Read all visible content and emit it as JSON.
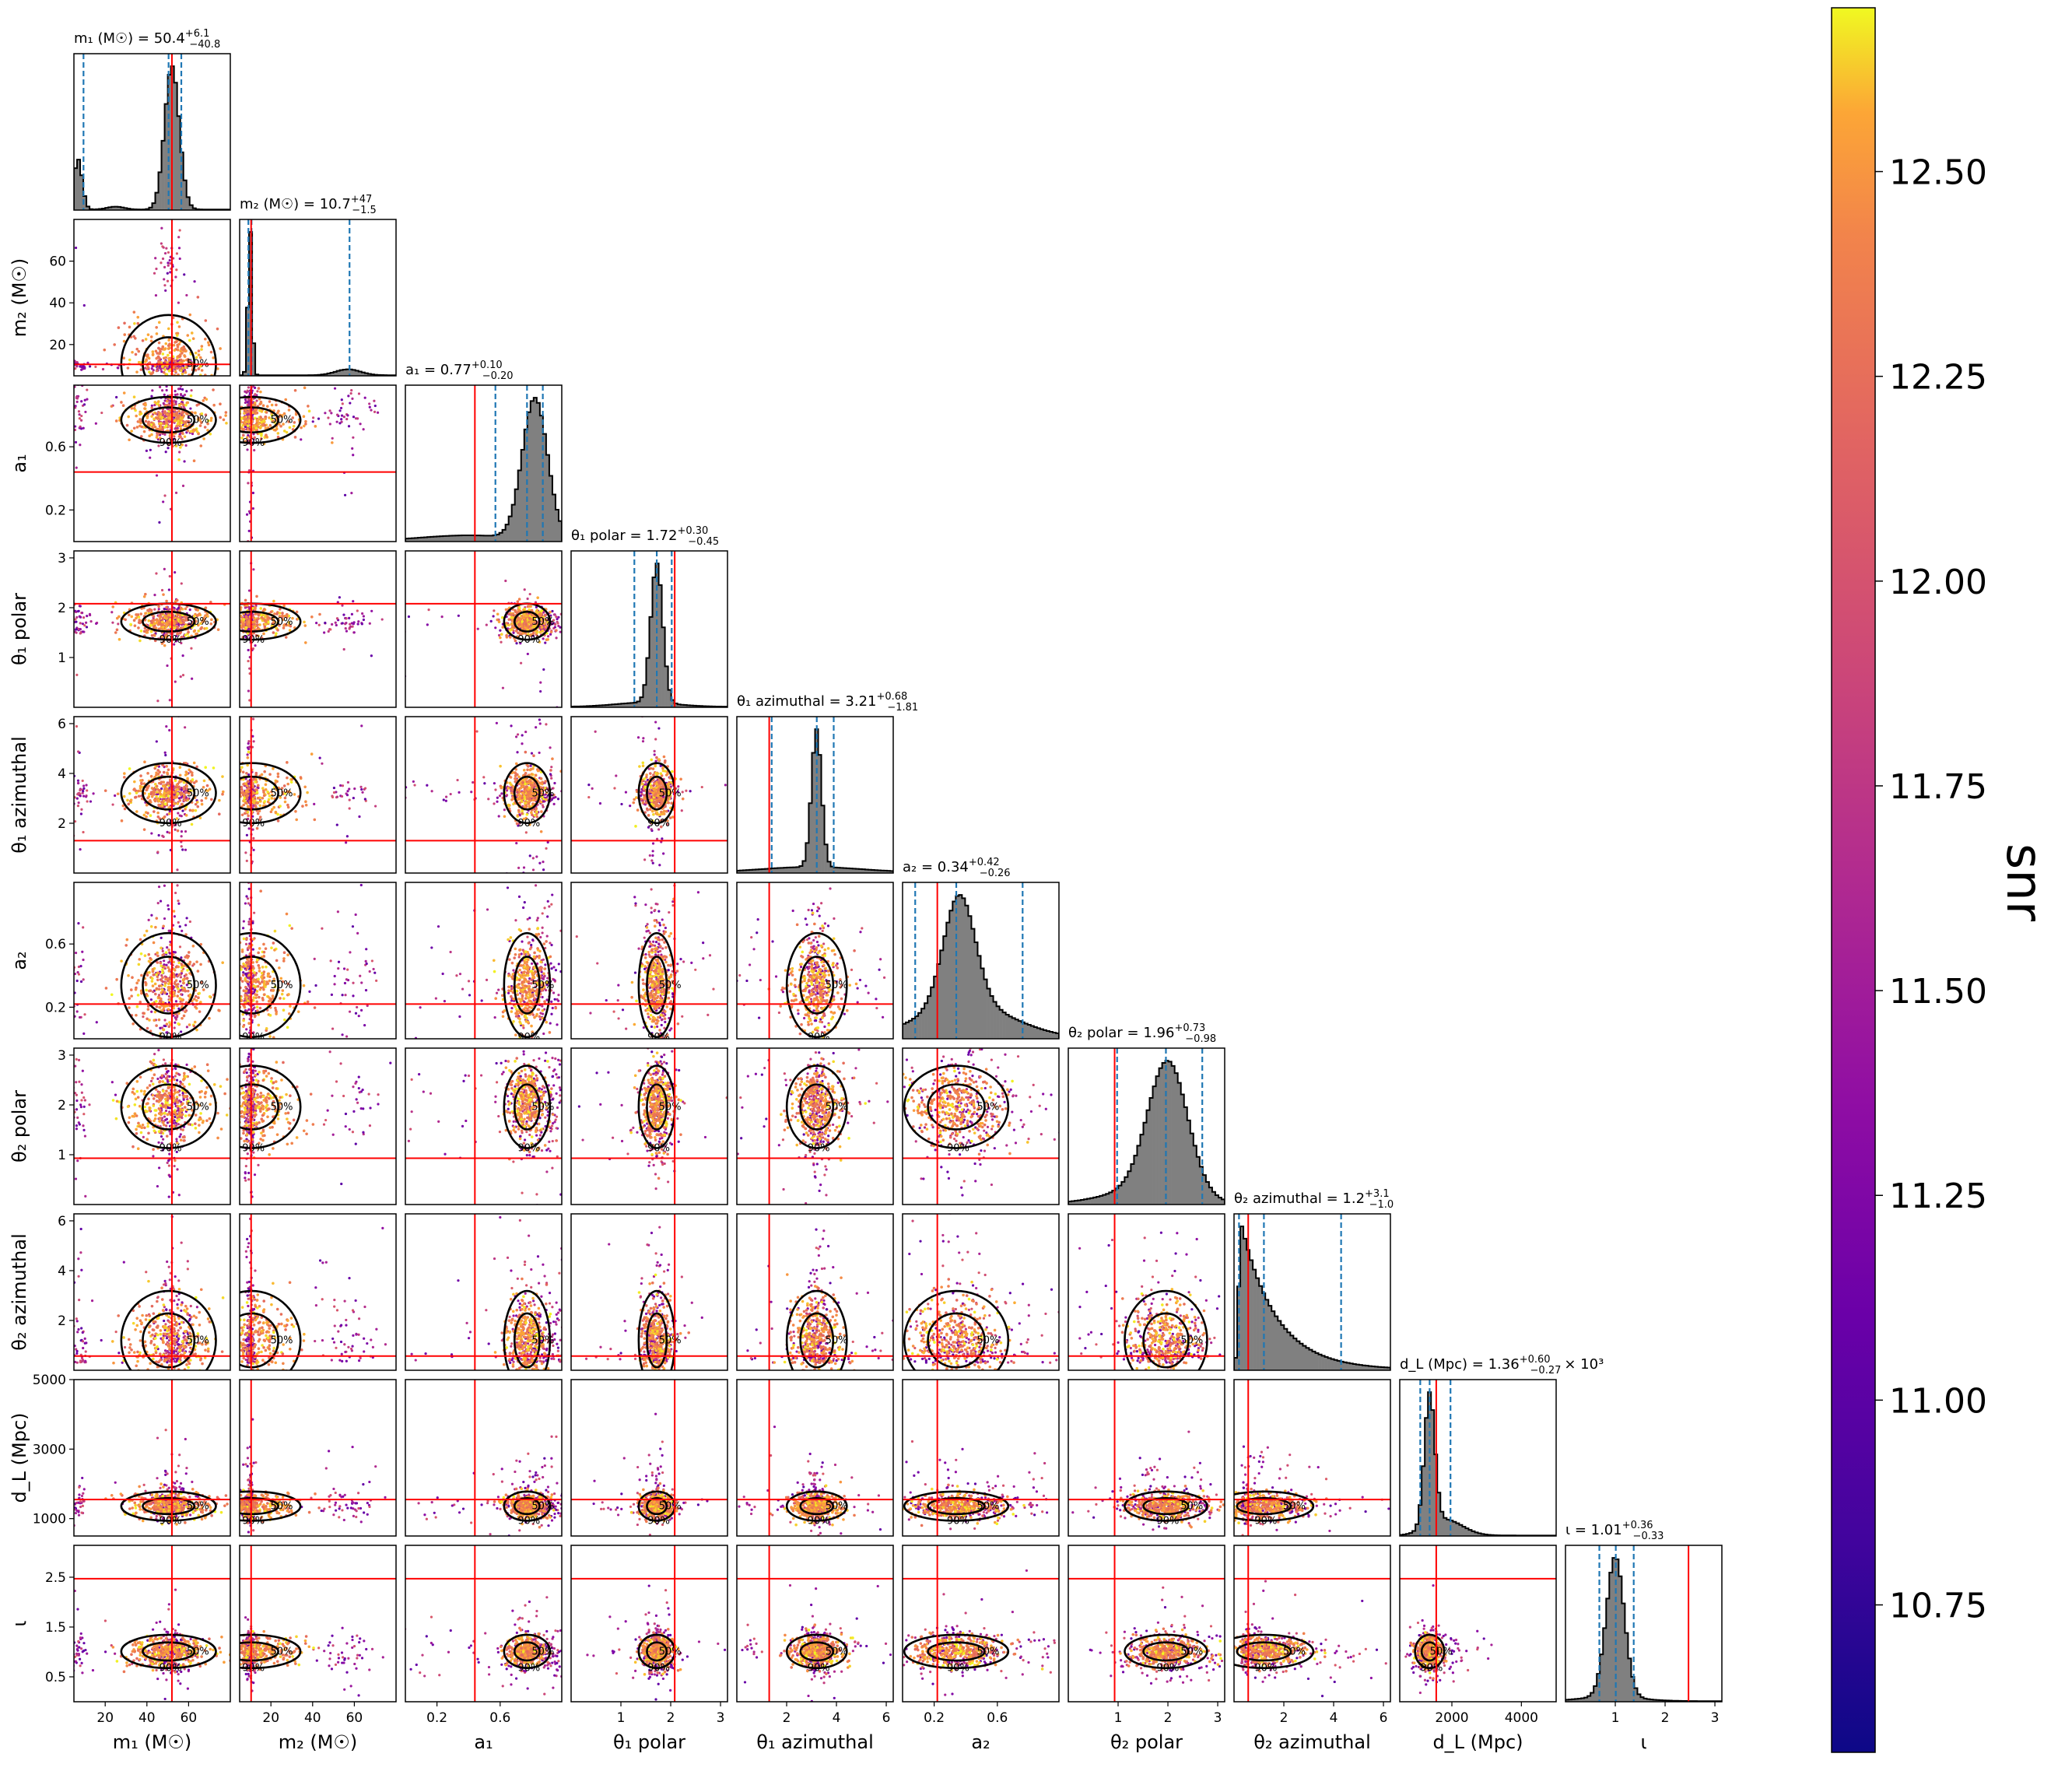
{
  "chart_data": {
    "type": "scatter",
    "subtype": "corner-plot",
    "colorbar": {
      "label": "snr",
      "colormap": "plasma",
      "range": [
        10.57,
        12.7
      ],
      "ticks": [
        "10.75",
        "11.00",
        "11.25",
        "11.50",
        "11.75",
        "12.00",
        "12.25",
        "12.50"
      ],
      "tick_values": [
        10.75,
        11.0,
        11.25,
        11.5,
        11.75,
        12.0,
        12.25,
        12.5
      ]
    },
    "parameters": [
      {
        "id": "m1",
        "name": "m₁",
        "unit": "(M☉)",
        "range": [
          5,
          80
        ],
        "ticks": [
          20,
          40,
          60
        ],
        "tick_labels": [
          "20",
          "40",
          "60"
        ],
        "median": 50.4,
        "ci_lo": 9.6,
        "ci_hi": 56.5,
        "truth": 52,
        "title": {
          "lhs": "m₁ (M☉) = 50.4",
          "sup": "+6.1",
          "sub": "−40.8",
          "tail": ""
        },
        "hist": {
          "kind": "bimodal",
          "peaks": [
            [
              7,
              2.0,
              0.35
            ],
            [
              52,
              3.5,
              1.0
            ],
            [
              25,
              4,
              0.02
            ]
          ]
        }
      },
      {
        "id": "m2",
        "name": "m₂",
        "unit": "(M☉)",
        "range": [
          5,
          80
        ],
        "ticks": [
          20,
          40,
          60
        ],
        "tick_labels": [
          "20",
          "40",
          "60"
        ],
        "median": 10.7,
        "ci_lo": 9.2,
        "ci_hi": 57.7,
        "truth": 10.5,
        "title": {
          "lhs": "m₂ (M☉) = 10.7",
          "sup": "+47",
          "sub": "−1.5",
          "tail": ""
        },
        "hist": {
          "kind": "bimodal",
          "peaks": [
            [
              10,
              1.0,
              1.0
            ],
            [
              57,
              6,
              0.04
            ]
          ]
        }
      },
      {
        "id": "a1",
        "name": "a₁",
        "unit": "",
        "range": [
          0.0,
          0.99
        ],
        "ticks": [
          0.2,
          0.6
        ],
        "tick_labels": [
          "0.2",
          "0.6"
        ],
        "median": 0.77,
        "ci_lo": 0.57,
        "ci_hi": 0.87,
        "truth": 0.44,
        "title": {
          "lhs": "a₁ = 0.77",
          "sup": "+0.10",
          "sub": "−0.20",
          "tail": ""
        },
        "hist": {
          "kind": "bimodal",
          "peaks": [
            [
              0.82,
              0.08,
              1.0
            ],
            [
              0.4,
              0.3,
              0.04
            ]
          ]
        }
      },
      {
        "id": "t1p",
        "name": "θ₁ polar",
        "unit": "",
        "range": [
          0,
          3.14
        ],
        "ticks": [
          1,
          2,
          3
        ],
        "tick_labels": [
          "1",
          "2",
          "3"
        ],
        "median": 1.72,
        "ci_lo": 1.27,
        "ci_hi": 2.02,
        "truth": 2.08,
        "title": {
          "lhs": "θ₁ polar = 1.72",
          "sup": "+0.30",
          "sub": "−0.45",
          "tail": ""
        },
        "hist": {
          "kind": "bimodal",
          "peaks": [
            [
              1.72,
              0.12,
              1.0
            ],
            [
              1.5,
              0.6,
              0.03
            ]
          ]
        }
      },
      {
        "id": "t1a",
        "name": "θ₁ azimuthal",
        "unit": "",
        "range": [
          0,
          6.28
        ],
        "ticks": [
          2,
          4,
          6
        ],
        "tick_labels": [
          "2",
          "4",
          "6"
        ],
        "median": 3.21,
        "ci_lo": 1.4,
        "ci_hi": 3.89,
        "truth": 1.3,
        "title": {
          "lhs": "θ₁ azimuthal = 3.21",
          "sup": "+0.68",
          "sub": "−1.81",
          "tail": ""
        },
        "hist": {
          "kind": "bimodal",
          "peaks": [
            [
              3.2,
              0.2,
              1.0
            ],
            [
              3.0,
              2.0,
              0.04
            ]
          ]
        }
      },
      {
        "id": "a2",
        "name": "a₂",
        "unit": "",
        "range": [
          0.0,
          0.99
        ],
        "ticks": [
          0.2,
          0.6
        ],
        "tick_labels": [
          "0.2",
          "0.6"
        ],
        "median": 0.34,
        "ci_lo": 0.08,
        "ci_hi": 0.76,
        "truth": 0.22,
        "title": {
          "lhs": "a₂ = 0.34",
          "sup": "+0.42",
          "sub": "−0.26",
          "tail": ""
        },
        "hist": {
          "kind": "bimodal",
          "peaks": [
            [
              0.36,
              0.1,
              1.0
            ],
            [
              0.4,
              0.3,
              0.3
            ]
          ]
        }
      },
      {
        "id": "t2p",
        "name": "θ₂ polar",
        "unit": "",
        "range": [
          0,
          3.14
        ],
        "ticks": [
          1,
          2,
          3
        ],
        "tick_labels": [
          "1",
          "2",
          "3"
        ],
        "median": 1.96,
        "ci_lo": 0.98,
        "ci_hi": 2.69,
        "truth": 0.93,
        "title": {
          "lhs": "θ₂ polar = 1.96",
          "sup": "+0.73",
          "sub": "−0.98",
          "tail": ""
        },
        "hist": {
          "kind": "bimodal",
          "peaks": [
            [
              2.0,
              0.4,
              1.0
            ],
            [
              1.5,
              0.8,
              0.1
            ]
          ]
        }
      },
      {
        "id": "t2a",
        "name": "θ₂ azimuthal",
        "unit": "",
        "range": [
          0,
          6.28
        ],
        "ticks": [
          2,
          4,
          6
        ],
        "tick_labels": [
          "2",
          "4",
          "6"
        ],
        "median": 1.2,
        "ci_lo": 0.2,
        "ci_hi": 4.3,
        "truth": 0.57,
        "title": {
          "lhs": "θ₂ azimuthal = 1.2",
          "sup": "+3.1",
          "sub": "−1.0",
          "tail": ""
        },
        "hist": {
          "kind": "decay",
          "peaks": [
            [
              0.3,
              1.4,
              1.0
            ]
          ]
        }
      },
      {
        "id": "dL",
        "name": "d_L",
        "unit": "(Mpc)",
        "range": [
          500,
          5000
        ],
        "ticks": [
          2000,
          4000
        ],
        "tick_labels": [
          "2000",
          "4000"
        ],
        "y_ticks": [
          1000,
          3000,
          5000
        ],
        "y_tick_labels": [
          "1000",
          "3000",
          "5000"
        ],
        "median": 1360,
        "ci_lo": 1090,
        "ci_hi": 1960,
        "truth": 1550,
        "title": {
          "lhs": "d_L (Mpc) = 1.36",
          "sup": "+0.60",
          "sub": "−0.27",
          "tail": "× 10³"
        },
        "hist": {
          "kind": "bimodal",
          "peaks": [
            [
              1360,
              150,
              1.0
            ],
            [
              1800,
              500,
              0.12
            ]
          ]
        }
      },
      {
        "id": "iota",
        "name": "ι",
        "unit": "",
        "range": [
          0,
          3.14
        ],
        "ticks": [
          1,
          2,
          3
        ],
        "tick_labels": [
          "1",
          "2",
          "3"
        ],
        "y_ticks": [
          0.5,
          1.5,
          2.5
        ],
        "y_tick_labels": [
          "0.5",
          "1.5",
          "2.5"
        ],
        "median": 1.01,
        "ci_lo": 0.68,
        "ci_hi": 1.37,
        "truth": 2.47,
        "title": {
          "lhs": "ι = 1.01",
          "sup": "+0.36",
          "sub": "−0.33",
          "tail": ""
        },
        "hist": {
          "kind": "bimodal",
          "peaks": [
            [
              1.0,
              0.18,
              1.0
            ],
            [
              0.9,
              0.6,
              0.03
            ]
          ]
        }
      }
    ],
    "contour_labels": [
      "50%",
      "90%"
    ]
  },
  "colors": {
    "truth": "#ff0000",
    "quantile": "#1f77b4",
    "hist_fill": "#808080",
    "contour": "#000000"
  }
}
